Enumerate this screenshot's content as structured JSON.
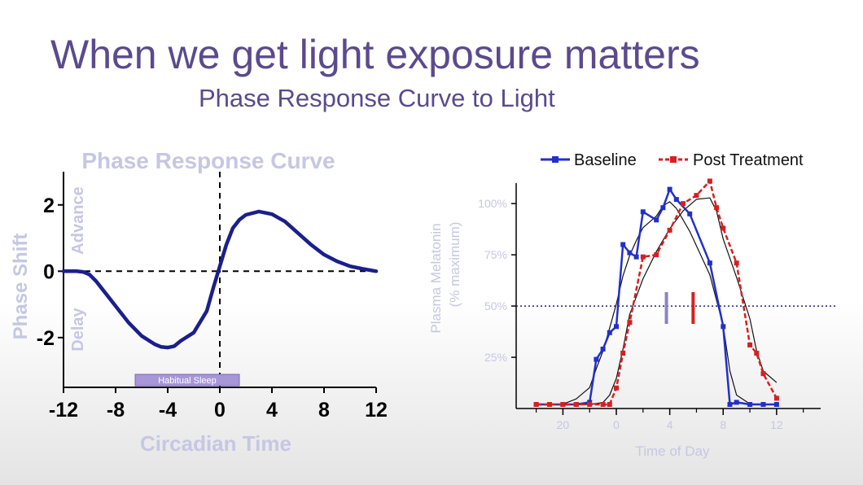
{
  "slide": {
    "title": "When we get light exposure matters",
    "subtitle": "Phase Response Curve to Light"
  },
  "chart_data": [
    {
      "type": "line",
      "title": "Phase Response Curve",
      "xlabel": "Circadian Time",
      "ylabel": "Phase Shift",
      "advance_label": "Advance",
      "delay_label": "Delay",
      "band_label": "Habitual Sleep",
      "band_range": [
        -6.5,
        1.5
      ],
      "xlim": [
        -12,
        12
      ],
      "ylim": [
        -3.5,
        3
      ],
      "x_ticks": [
        -12,
        -8,
        -4,
        0,
        4,
        8,
        12
      ],
      "x_tick_labels": [
        "-12",
        "-8",
        "-4",
        "0",
        "4",
        "8",
        "12"
      ],
      "y_ticks": [
        2,
        0,
        -2
      ],
      "y_tick_labels": [
        "2",
        "0",
        "-2"
      ],
      "grid": false,
      "series": [
        {
          "color": "#1a1f8c",
          "x": [
            -12,
            -11,
            -10.5,
            -10,
            -9.5,
            -9,
            -8,
            -7,
            -6,
            -5,
            -4.5,
            -4,
            -3.5,
            -3,
            -2,
            -1,
            -0.5,
            0,
            0.5,
            1,
            1.5,
            2,
            3,
            4,
            5,
            6,
            7,
            8,
            9,
            10,
            11,
            12
          ],
          "y": [
            0,
            0,
            -0.02,
            -0.1,
            -0.3,
            -0.55,
            -1.05,
            -1.55,
            -1.95,
            -2.2,
            -2.28,
            -2.3,
            -2.26,
            -2.1,
            -1.85,
            -1.2,
            -0.5,
            0.15,
            0.8,
            1.3,
            1.55,
            1.7,
            1.8,
            1.72,
            1.5,
            1.15,
            0.8,
            0.5,
            0.3,
            0.15,
            0.07,
            0
          ]
        }
      ]
    },
    {
      "type": "line",
      "xlabel": "Time of Day",
      "ylabel": "Plasma Melatonin (% maximum)",
      "xlim": [
        16.5,
        15.3
      ],
      "x_ticks": [
        20,
        0,
        4,
        8,
        12
      ],
      "x_tick_labels": [
        "20",
        "0",
        "4",
        "8",
        "12"
      ],
      "ylim": [
        0,
        110
      ],
      "y_ticks": [
        100,
        75,
        50,
        25
      ],
      "y_tick_labels": [
        "100%",
        "75%",
        "50%",
        "25%"
      ],
      "threshold": 50,
      "legend_position": "top",
      "grid": false,
      "series": [
        {
          "name": "Baseline",
          "color": "#2230c8",
          "style": "solid",
          "x": [
            "18:00",
            "19:00",
            "20:00",
            "21:00",
            "22:00",
            "22:30",
            "23:00",
            "23:30",
            "0:00",
            "0:30",
            "1:00",
            "1:30",
            "2:00",
            "3:00",
            "3:30",
            "4:00",
            "4:30",
            "5:30",
            "7:00",
            "8:00",
            "8:30",
            "9:00",
            "10:00",
            "11:00",
            "12:00"
          ],
          "y": [
            2,
            2,
            2,
            2,
            3,
            24,
            29,
            37,
            40,
            80,
            76,
            74,
            96,
            92,
            98,
            107,
            102,
            95,
            71,
            40,
            2,
            3,
            2,
            2,
            2
          ]
        },
        {
          "name": "Post Treatment",
          "color": "#d42020",
          "style": "dashed",
          "x": [
            "18:00",
            "19:00",
            "20:00",
            "21:00",
            "22:00",
            "23:00",
            "23:30",
            "0:00",
            "0:30",
            "1:00",
            "2:00",
            "3:00",
            "4:00",
            "5:00",
            "6:00",
            "7:00",
            "7:30",
            "8:00",
            "9:00",
            "10:00",
            "10:30",
            "11:00",
            "12:00"
          ],
          "y": [
            2,
            2,
            2,
            2,
            2,
            2,
            2,
            10,
            27,
            42,
            74,
            75,
            87,
            100,
            104,
            111,
            98,
            88,
            71,
            31,
            27,
            17,
            5
          ]
        }
      ],
      "markers": [
        {
          "color": "#8a84c4",
          "x": "3:45"
        },
        {
          "color": "#d42020",
          "x": "5:45"
        }
      ]
    }
  ]
}
